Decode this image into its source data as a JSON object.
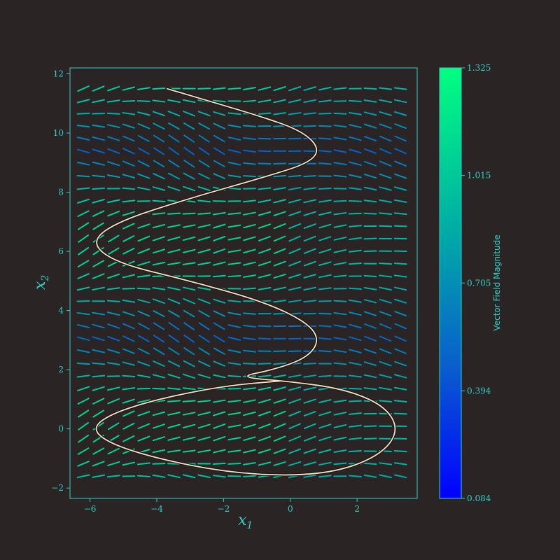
{
  "chart_data": {
    "type": "quiver",
    "title": "",
    "xlabel": "x",
    "xlabel_sub": "1",
    "ylabel": "x",
    "ylabel_sub": "2",
    "xlim": [
      -6.6,
      3.8
    ],
    "ylim": [
      -2.35,
      12.2
    ],
    "xticks": [
      -6,
      -4,
      -2,
      0,
      2
    ],
    "xtick_labels": [
      "−6",
      "−4",
      "−2",
      "0",
      "2"
    ],
    "yticks": [
      -2,
      0,
      2,
      4,
      6,
      8,
      10,
      12
    ],
    "ytick_labels": [
      "−2",
      "0",
      "2",
      "4",
      "6",
      "8",
      "10",
      "12"
    ],
    "vector_field": {
      "description": "dx1/dx2 field with periodic minima near x2 = 0, 6.3; grid sampled over x1 in [-6.2, 3.3], x2 in [-1.6, 11.5]",
      "x1_range": [
        -6.2,
        3.3
      ],
      "x2_range": [
        -1.6,
        11.5
      ],
      "grid_cols": 22,
      "grid_rows": 32,
      "magnitude_range": [
        0.084,
        1.325
      ]
    },
    "trajectory": {
      "color": "#f3e3c3",
      "points": [
        [
          -3.7,
          11.5
        ],
        [
          -2.5,
          11.1
        ],
        [
          -1.0,
          10.6
        ],
        [
          0.3,
          10.1
        ],
        [
          0.88,
          9.5
        ],
        [
          0.6,
          9.0
        ],
        [
          -0.8,
          8.5
        ],
        [
          -3.0,
          7.8
        ],
        [
          -5.2,
          7.0
        ],
        [
          -6.0,
          6.3
        ],
        [
          -5.2,
          5.6
        ],
        [
          -3.0,
          5.0
        ],
        [
          -0.8,
          4.3
        ],
        [
          0.5,
          3.6
        ],
        [
          0.88,
          3.0
        ],
        [
          0.5,
          2.4
        ],
        [
          -0.5,
          2.0
        ],
        [
          -1.6,
          1.75
        ],
        [
          0.0,
          1.6
        ],
        [
          1.6,
          1.35
        ],
        [
          2.8,
          0.8
        ],
        [
          3.25,
          0.0
        ],
        [
          2.8,
          -0.8
        ],
        [
          1.6,
          -1.4
        ],
        [
          0.0,
          -1.6
        ],
        [
          -2.0,
          -1.45
        ],
        [
          -4.0,
          -1.0
        ],
        [
          -5.4,
          -0.5
        ],
        [
          -5.95,
          0.0
        ],
        [
          -5.4,
          0.5
        ],
        [
          -4.0,
          1.0
        ],
        [
          -2.0,
          1.45
        ],
        [
          -0.3,
          1.62
        ]
      ]
    },
    "colorbar": {
      "label": "Vector Field Magnitude",
      "ticks": [
        0.084,
        0.394,
        0.705,
        1.015,
        1.325
      ],
      "tick_labels": [
        "0.084",
        "0.394",
        "0.705",
        "1.015",
        "1.325"
      ],
      "colors": [
        "#0000ff",
        "#00f07f"
      ]
    },
    "grid": false,
    "legend": "none"
  }
}
